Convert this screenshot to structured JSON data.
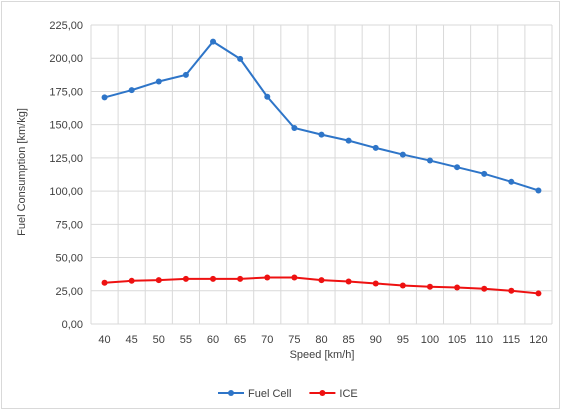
{
  "chart_data": {
    "type": "line",
    "title": "",
    "xlabel": "Speed [km/h]",
    "ylabel": "Fuel Consumption [km/kg]",
    "x": [
      40,
      45,
      50,
      55,
      60,
      65,
      70,
      75,
      80,
      85,
      90,
      95,
      100,
      105,
      110,
      115,
      120
    ],
    "x_tick_labels": [
      "40",
      "45",
      "50",
      "55",
      "60",
      "65",
      "70",
      "75",
      "80",
      "85",
      "90",
      "95",
      "100",
      "105",
      "110",
      "115",
      "120"
    ],
    "ylim": [
      0,
      225
    ],
    "y_ticks": [
      0,
      25,
      50,
      75,
      100,
      125,
      150,
      175,
      200,
      225
    ],
    "y_tick_labels": [
      "0,00",
      "25,00",
      "50,00",
      "75,00",
      "100,00",
      "125,00",
      "150,00",
      "175,00",
      "200,00",
      "225,00"
    ],
    "grid": true,
    "legend_position": "bottom",
    "series": [
      {
        "name": "Fuel Cell",
        "color": "#2e75c8",
        "values": [
          170.5,
          176,
          182.5,
          187.5,
          212.5,
          199.5,
          171,
          147.5,
          142.5,
          138,
          132.5,
          127.5,
          123,
          118,
          113,
          107,
          100.5
        ]
      },
      {
        "name": "ICE",
        "color": "#ee1111",
        "values": [
          31,
          32.5,
          33,
          34,
          34,
          34,
          35,
          35,
          33,
          32,
          30.5,
          29,
          28,
          27.5,
          26.5,
          25,
          23
        ]
      }
    ]
  }
}
